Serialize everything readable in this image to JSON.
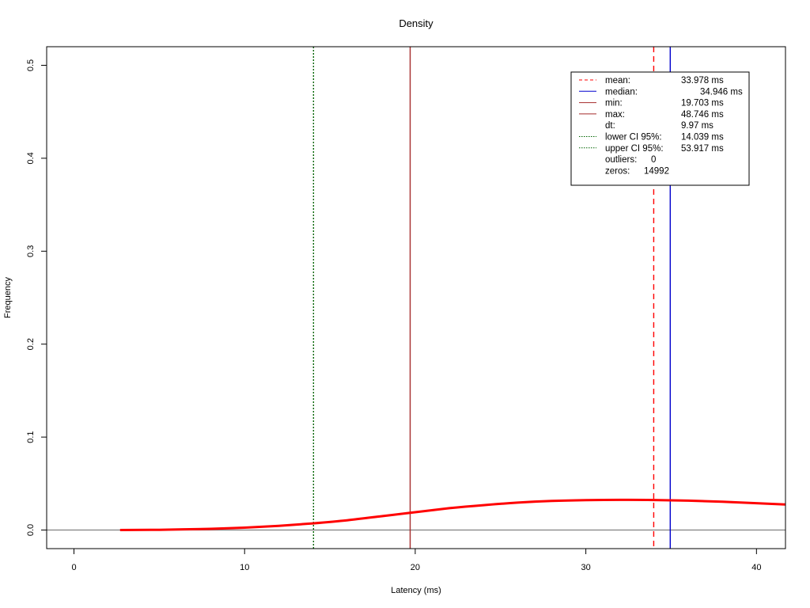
{
  "chart_data": {
    "type": "line",
    "title": "Density",
    "xlabel": "Latency (ms)",
    "ylabel": "Frequency",
    "xlim": [
      -1.6,
      41.7
    ],
    "ylim": [
      -0.02,
      0.52
    ],
    "x_ticks": [
      "0",
      "10",
      "20",
      "30",
      "40"
    ],
    "y_ticks": [
      "0.0",
      "0.1",
      "0.2",
      "0.3",
      "0.4",
      "0.5"
    ],
    "grid": false,
    "legend_position": "top-right",
    "series": [
      {
        "x": [
          2.7,
          5,
          8,
          10,
          12,
          14,
          16,
          18,
          19.7,
          22,
          24,
          26,
          28,
          30,
          32,
          34,
          36,
          38,
          40,
          41.7
        ],
        "y": [
          0.0,
          0.0003,
          0.0013,
          0.0026,
          0.0045,
          0.0072,
          0.0105,
          0.0148,
          0.0185,
          0.0235,
          0.0268,
          0.0295,
          0.0313,
          0.0322,
          0.0325,
          0.0323,
          0.0316,
          0.0304,
          0.0289,
          0.0275
        ]
      }
    ],
    "reference_lines": [
      {
        "key": "mean",
        "x": 33.978,
        "color": "#ff0000",
        "style": "dashed"
      },
      {
        "key": "median",
        "x": 34.946,
        "color": "#0000cd",
        "style": "solid"
      },
      {
        "key": "min",
        "x": 19.703,
        "color": "#a52a2a",
        "style": "solid"
      },
      {
        "key": "max",
        "x": 48.746,
        "color": "#a52a2a",
        "style": "solid"
      },
      {
        "key": "lower_ci",
        "x": 14.039,
        "color": "#006400",
        "style": "dotted"
      },
      {
        "key": "upper_ci",
        "x": 53.917,
        "color": "#006400",
        "style": "dotted"
      }
    ],
    "legend": [
      {
        "label": "mean:",
        "value": "33.978 ms",
        "symbol": "dashed",
        "color": "#ff0000"
      },
      {
        "label": "median:",
        "value": "34.946 ms",
        "symbol": "solid",
        "color": "#0000cd"
      },
      {
        "label": "min:",
        "value": "19.703 ms",
        "symbol": "solid",
        "color": "#a52a2a"
      },
      {
        "label": "max:",
        "value": "48.746 ms",
        "symbol": "solid",
        "color": "#a52a2a"
      },
      {
        "label": "dt:",
        "value": "9.97 ms",
        "symbol": "none",
        "color": ""
      },
      {
        "label": "lower CI 95%:",
        "value": "14.039 ms",
        "symbol": "dotted",
        "color": "#006400"
      },
      {
        "label": "upper CI 95%:",
        "value": "53.917 ms",
        "symbol": "dotted",
        "color": "#006400"
      },
      {
        "label": "outliers:",
        "value": "0",
        "symbol": "none",
        "color": ""
      },
      {
        "label": "zeros:",
        "value": "14992",
        "symbol": "none",
        "color": ""
      }
    ],
    "colors": {
      "density_curve": "#ff0000",
      "zero_line": "#808080"
    }
  }
}
